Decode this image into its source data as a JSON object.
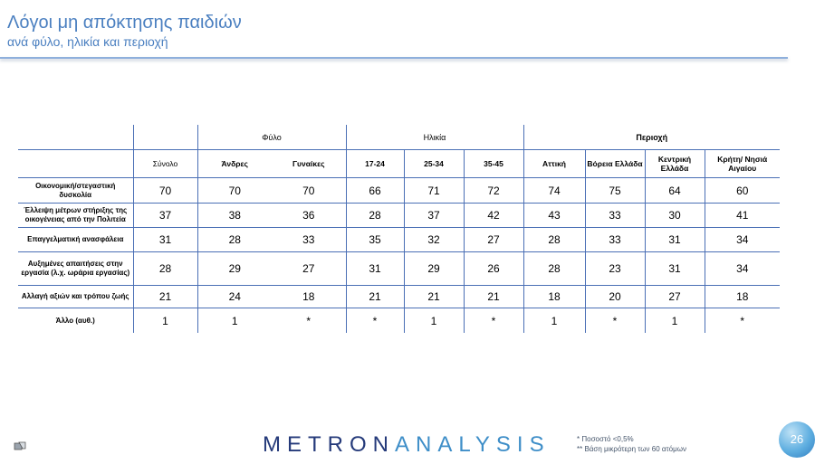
{
  "header": {
    "title": "Λόγοι μη απόκτησης παιδιών",
    "subtitle": "ανά φύλο, ηλικία και περιοχή"
  },
  "table": {
    "groups": {
      "gender": "Φύλο",
      "age": "Ηλικία",
      "region": "Περιοχή"
    },
    "columns": [
      "Σύνολο",
      "Άνδρες",
      "Γυναίκες",
      "17-24",
      "25-34",
      "35-45",
      "Αττική",
      "Βόρεια Ελλάδα",
      "Κεντρική Ελλάδα",
      "Κρήτη/ Νησιά Αιγαίου"
    ],
    "rows": [
      {
        "label": "Οικονομική/στεγαστική δυσκολία",
        "values": [
          "70",
          "70",
          "70",
          "66",
          "71",
          "72",
          "74",
          "75",
          "64",
          "60"
        ]
      },
      {
        "label": "Έλλειψη μέτρων στήριξης της οικογένειας από την Πολιτεία",
        "values": [
          "37",
          "38",
          "36",
          "28",
          "37",
          "42",
          "43",
          "33",
          "30",
          "41"
        ]
      },
      {
        "label": "Επαγγελματική ανασφάλεια",
        "values": [
          "31",
          "28",
          "33",
          "35",
          "32",
          "27",
          "28",
          "33",
          "31",
          "34"
        ]
      },
      {
        "label": "Αυξημένες απαιτήσεις στην εργασία (λ.χ. ωράρια εργασίας)",
        "values": [
          "28",
          "29",
          "27",
          "31",
          "29",
          "26",
          "28",
          "23",
          "31",
          "34"
        ]
      },
      {
        "label": "Αλλαγή αξιών και τρόπου ζωής",
        "values": [
          "21",
          "24",
          "18",
          "21",
          "21",
          "21",
          "18",
          "20",
          "27",
          "18"
        ]
      },
      {
        "label": "Άλλο (αυθ.)",
        "values": [
          "1",
          "1",
          "*",
          "*",
          "1",
          "*",
          "1",
          "*",
          "1",
          "*"
        ]
      }
    ]
  },
  "footer": {
    "logo_part1": "METRON",
    "logo_part2": "ANALYSIS",
    "note1": "*   Ποσοστό <0,5%",
    "note2": "**  Βάση μικρότερη των 60 ατόμων",
    "page_number": "26"
  }
}
